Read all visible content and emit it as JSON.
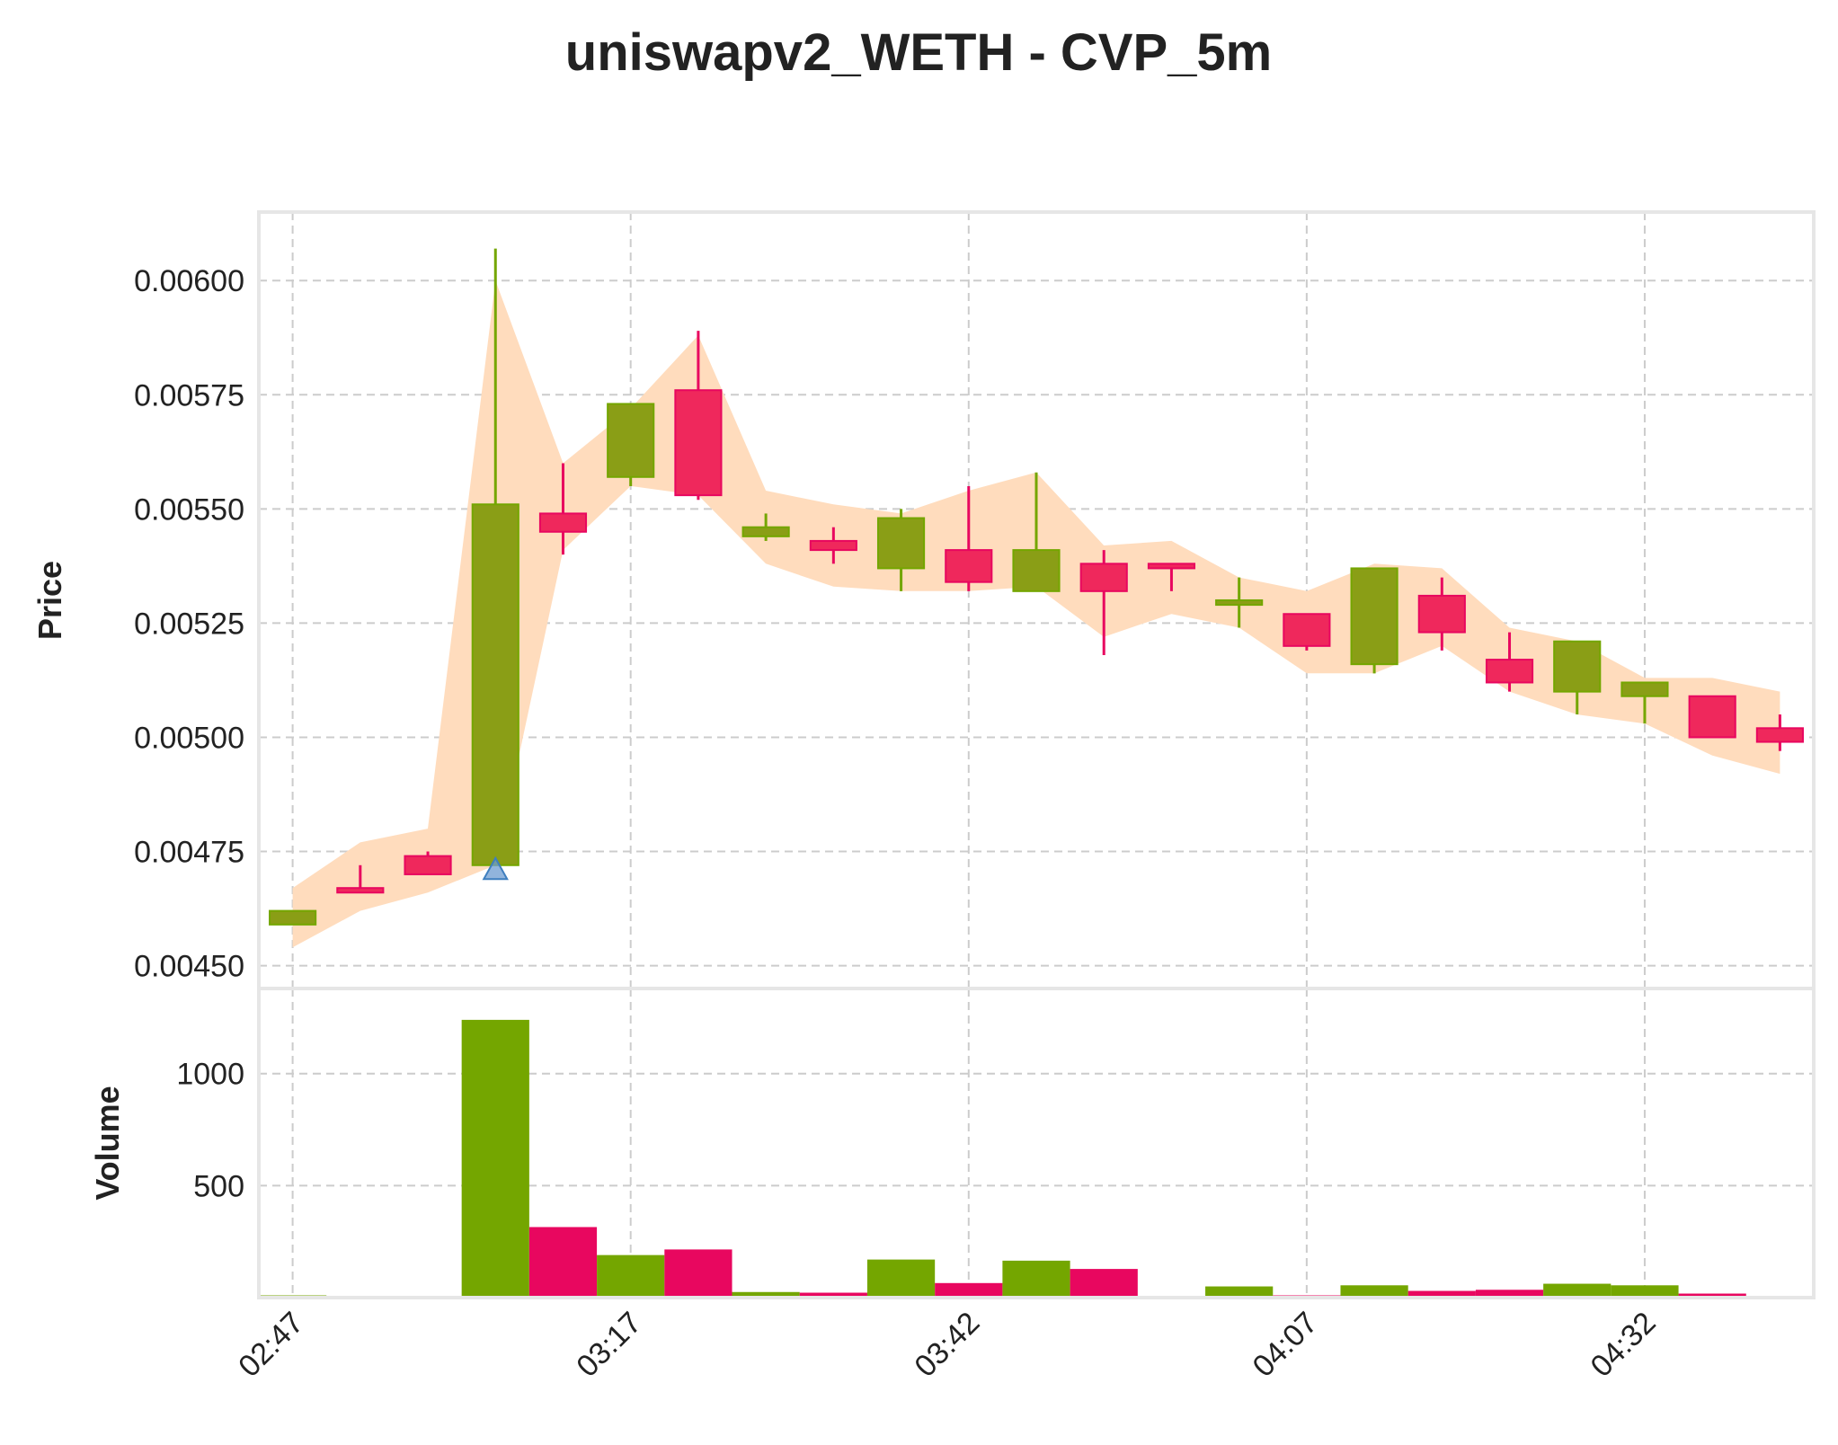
{
  "chart_data": {
    "type": "candlestick",
    "title": "uniswapv2_WETH - CVP_5m",
    "price_panel": {
      "ylabel": "Price",
      "ylim": [
        0.00445,
        0.00615
      ],
      "yticks": [
        "0.00450",
        "0.00475",
        "0.00500",
        "0.00525",
        "0.00550",
        "0.00575",
        "0.00600"
      ],
      "ytick_values": [
        0.0045,
        0.00475,
        0.005,
        0.00525,
        0.0055,
        0.00575,
        0.006
      ],
      "grid": true
    },
    "volume_panel": {
      "ylabel": "Volume",
      "ylim": [
        0,
        1380
      ],
      "yticks": [
        "500",
        "1000"
      ],
      "ytick_values": [
        500,
        1000
      ],
      "grid": true
    },
    "x_axis": {
      "first_time": "02:47",
      "interval_minutes": 5,
      "xticks": [
        "02:47",
        "03:17",
        "03:42",
        "04:07",
        "04:32"
      ],
      "xtick_indices": [
        0,
        5,
        10,
        15,
        20
      ],
      "xlim": [
        -0.5,
        22.5
      ]
    },
    "colors": {
      "up": "#74a600",
      "down": "#e8075f",
      "up_body": "#8a9e16",
      "down_body": "#ef285c",
      "band": "#ffdcbd",
      "marker": "#6c9bd0"
    },
    "candles": [
      {
        "time": "02:47",
        "open": 0.00459,
        "high": 0.00462,
        "low": 0.00459,
        "close": 0.00462,
        "volume": 10
      },
      {
        "time": "02:52",
        "open": 0.00467,
        "high": 0.00472,
        "low": 0.00466,
        "close": 0.00466,
        "volume": 8
      },
      {
        "time": "02:57",
        "open": 0.00474,
        "high": 0.00475,
        "low": 0.0047,
        "close": 0.0047,
        "volume": 8
      },
      {
        "time": "03:02",
        "open": 0.00472,
        "high": 0.00607,
        "low": 0.00472,
        "close": 0.00551,
        "volume": 1240
      },
      {
        "time": "03:07",
        "open": 0.00549,
        "high": 0.0056,
        "low": 0.0054,
        "close": 0.00545,
        "volume": 315
      },
      {
        "time": "03:12",
        "open": 0.00557,
        "high": 0.00573,
        "low": 0.00555,
        "close": 0.00573,
        "volume": 190
      },
      {
        "time": "03:17",
        "open": 0.00576,
        "high": 0.00589,
        "low": 0.00552,
        "close": 0.00553,
        "volume": 215
      },
      {
        "time": "03:22",
        "open": 0.00544,
        "high": 0.00549,
        "low": 0.00543,
        "close": 0.00546,
        "volume": 25
      },
      {
        "time": "03:27",
        "open": 0.00543,
        "high": 0.00546,
        "low": 0.00538,
        "close": 0.00541,
        "volume": 22
      },
      {
        "time": "03:32",
        "open": 0.00537,
        "high": 0.0055,
        "low": 0.00532,
        "close": 0.00548,
        "volume": 170
      },
      {
        "time": "03:37",
        "open": 0.00541,
        "high": 0.00555,
        "low": 0.00532,
        "close": 0.00534,
        "volume": 65
      },
      {
        "time": "03:42",
        "open": 0.00532,
        "high": 0.00558,
        "low": 0.00532,
        "close": 0.00541,
        "volume": 165
      },
      {
        "time": "03:47",
        "open": 0.00538,
        "high": 0.00541,
        "low": 0.00518,
        "close": 0.00532,
        "volume": 128
      },
      {
        "time": "03:52",
        "open": 0.00538,
        "high": 0.00538,
        "low": 0.00532,
        "close": 0.00537,
        "volume": 3
      },
      {
        "time": "03:57",
        "open": 0.00529,
        "high": 0.00535,
        "low": 0.00524,
        "close": 0.0053,
        "volume": 50
      },
      {
        "time": "04:02",
        "open": 0.00527,
        "high": 0.00527,
        "low": 0.00519,
        "close": 0.0052,
        "volume": 10
      },
      {
        "time": "04:07",
        "open": 0.00516,
        "high": 0.00537,
        "low": 0.00514,
        "close": 0.00537,
        "volume": 55
      },
      {
        "time": "04:12",
        "open": 0.00531,
        "high": 0.00535,
        "low": 0.00519,
        "close": 0.00523,
        "volume": 30
      },
      {
        "time": "04:17",
        "open": 0.00517,
        "high": 0.00523,
        "low": 0.0051,
        "close": 0.00512,
        "volume": 35
      },
      {
        "time": "04:22",
        "open": 0.0051,
        "high": 0.00521,
        "low": 0.00505,
        "close": 0.00521,
        "volume": 62
      },
      {
        "time": "04:27",
        "open": 0.00509,
        "high": 0.00512,
        "low": 0.00503,
        "close": 0.00512,
        "volume": 55
      },
      {
        "time": "04:32",
        "open": 0.00509,
        "high": 0.00509,
        "low": 0.005,
        "close": 0.005,
        "volume": 18
      },
      {
        "time": "04:37",
        "open": 0.00502,
        "high": 0.00505,
        "low": 0.00497,
        "close": 0.00499,
        "volume": 3
      }
    ],
    "band": {
      "upper": [
        0.00467,
        0.00477,
        0.0048,
        0.006,
        0.0056,
        0.00572,
        0.00588,
        0.00554,
        0.00551,
        0.00549,
        0.00554,
        0.00558,
        0.00542,
        0.00543,
        0.00535,
        0.00532,
        0.00538,
        0.00537,
        0.00524,
        0.00521,
        0.00513,
        0.00513,
        0.0051
      ],
      "lower": [
        0.00454,
        0.00462,
        0.00466,
        0.00472,
        0.00541,
        0.00555,
        0.00553,
        0.00538,
        0.00533,
        0.00532,
        0.00532,
        0.00533,
        0.00522,
        0.00527,
        0.00524,
        0.00514,
        0.00514,
        0.0052,
        0.0051,
        0.00505,
        0.00503,
        0.00496,
        0.00492
      ]
    },
    "markers": [
      {
        "index": 3,
        "value": 0.00471,
        "shape": "triangle-up"
      }
    ]
  }
}
